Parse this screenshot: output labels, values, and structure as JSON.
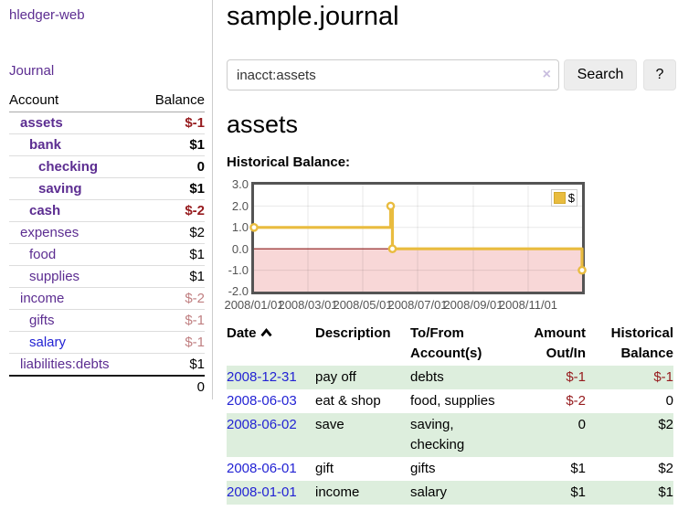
{
  "sidebar": {
    "brand": "hledger-web",
    "journal_link": "Journal",
    "accounts_table": {
      "headers": [
        "Account",
        "Balance"
      ],
      "accounts": [
        {
          "name": "assets",
          "level": 1,
          "bold": true,
          "balance": "$-1",
          "balance_style": "neg-strong",
          "link_style": "purple"
        },
        {
          "name": "bank",
          "level": 2,
          "bold": true,
          "balance": "$1",
          "balance_style": "",
          "link_style": "purple"
        },
        {
          "name": "checking",
          "level": 3,
          "bold": true,
          "balance": "0",
          "balance_style": "",
          "link_style": "purple"
        },
        {
          "name": "saving",
          "level": 3,
          "bold": true,
          "balance": "$1",
          "balance_style": "",
          "link_style": "purple"
        },
        {
          "name": "cash",
          "level": 2,
          "bold": true,
          "balance": "$-2",
          "balance_style": "neg-strong",
          "link_style": "purple"
        },
        {
          "name": "expenses",
          "level": 1,
          "bold": false,
          "balance": "$2",
          "balance_style": "",
          "link_style": "purple"
        },
        {
          "name": "food",
          "level": 2,
          "bold": false,
          "balance": "$1",
          "balance_style": "",
          "link_style": "purple"
        },
        {
          "name": "supplies",
          "level": 2,
          "bold": false,
          "balance": "$1",
          "balance_style": "",
          "link_style": "purple"
        },
        {
          "name": "income",
          "level": 1,
          "bold": false,
          "balance": "$-2",
          "balance_style": "neg-dim",
          "link_style": "purple"
        },
        {
          "name": "gifts",
          "level": 2,
          "bold": false,
          "balance": "$-1",
          "balance_style": "neg-dim",
          "link_style": "purple"
        },
        {
          "name": "salary",
          "level": 2,
          "bold": false,
          "balance": "$-1",
          "balance_style": "neg-dim",
          "link_style": "blue"
        },
        {
          "name": "liabilities:debts",
          "level": 1,
          "bold": false,
          "balance": "$1",
          "balance_style": "",
          "link_style": "purple"
        }
      ],
      "total": "0"
    }
  },
  "main": {
    "title": "sample.journal",
    "search": {
      "value": "inacct:assets",
      "clear_icon": "×",
      "button_label": "Search",
      "help_label": "?"
    },
    "account_heading": "assets",
    "chart_caption": "Historical Balance:"
  },
  "chart_data": {
    "type": "line",
    "title": "Historical Balance",
    "step": true,
    "x_type": "date",
    "x_range": [
      "2008/01/01",
      "2008/12/31"
    ],
    "points": [
      {
        "date": "2008/01/01",
        "value": 1
      },
      {
        "date": "2008/06/01",
        "value": 2
      },
      {
        "date": "2008/06/03",
        "value": 0
      },
      {
        "date": "2008/12/31",
        "value": -1
      }
    ],
    "ylim": [
      -2,
      3
    ],
    "yticks": [
      "3.0",
      "2.0",
      "1.0",
      "0.0",
      "-1.0",
      "-2.0"
    ],
    "ytick_values": [
      3,
      2,
      1,
      0,
      -1,
      -2
    ],
    "xticks": [
      "2008/01/01",
      "2008/03/01",
      "2008/05/01",
      "2008/07/01",
      "2008/09/01",
      "2008/11/01"
    ],
    "legend": [
      {
        "label": "$",
        "color": "#e9bc3f"
      }
    ],
    "grid": true,
    "legend_position": "top-right",
    "line_color": "#e9bc3f",
    "marker_fill": "#ffffff",
    "negative_region_color": "#f8d7d7",
    "zero_line_color": "#8b1a1a"
  },
  "register": {
    "headers": [
      "Date",
      "Description",
      "To/From Account(s)",
      "Amount Out/In",
      "Historical Balance"
    ],
    "sort_column": "Date",
    "sort_direction": "ascending",
    "rows": [
      {
        "date": "2008-12-31",
        "description": "pay off",
        "accounts": "debts",
        "amount": "$-1",
        "amount_neg": true,
        "balance": "$-1",
        "balance_neg": true,
        "stripe": true
      },
      {
        "date": "2008-06-03",
        "description": "eat & shop",
        "accounts": "food, supplies",
        "amount": "$-2",
        "amount_neg": true,
        "balance": "0",
        "balance_neg": false,
        "stripe": false
      },
      {
        "date": "2008-06-02",
        "description": "save",
        "accounts": "saving, checking",
        "amount": "0",
        "amount_neg": false,
        "balance": "$2",
        "balance_neg": false,
        "stripe": true
      },
      {
        "date": "2008-06-01",
        "description": "gift",
        "accounts": "gifts",
        "amount": "$1",
        "amount_neg": false,
        "balance": "$2",
        "balance_neg": false,
        "stripe": false
      },
      {
        "date": "2008-01-01",
        "description": "income",
        "accounts": "salary",
        "amount": "$1",
        "amount_neg": false,
        "balance": "$1",
        "balance_neg": false,
        "stripe": true
      }
    ]
  }
}
